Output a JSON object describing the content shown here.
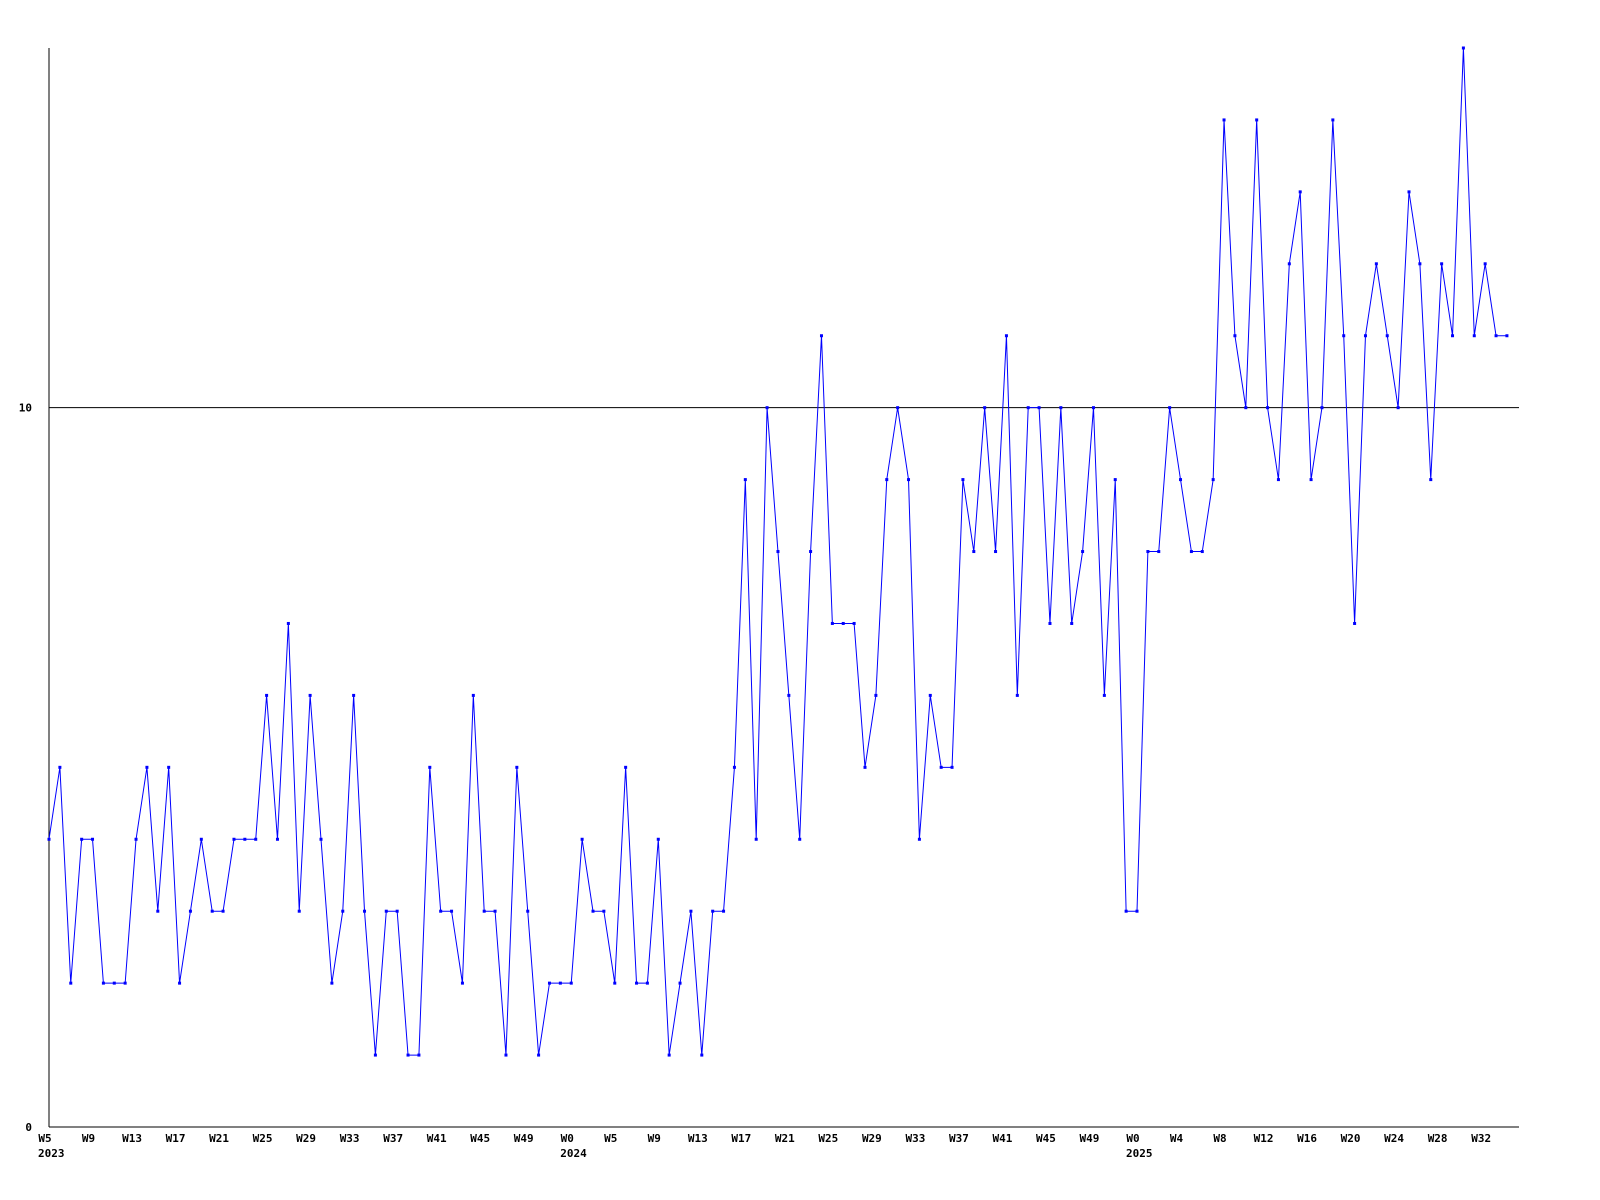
{
  "chart_data": {
    "type": "line",
    "categories": [
      "W5",
      null,
      null,
      null,
      "W9",
      null,
      null,
      null,
      "W13",
      null,
      null,
      null,
      "W17",
      null,
      null,
      null,
      "W21",
      null,
      null,
      null,
      "W25",
      null,
      null,
      null,
      "W29",
      null,
      null,
      null,
      "W33",
      null,
      null,
      null,
      "W37",
      null,
      null,
      null,
      "W41",
      null,
      null,
      null,
      "W45",
      null,
      null,
      null,
      "W49",
      null,
      null,
      null,
      "W0",
      null,
      null,
      null,
      "W5",
      null,
      null,
      null,
      "W9",
      null,
      null,
      null,
      "W13",
      null,
      null,
      null,
      "W17",
      null,
      null,
      null,
      "W21",
      null,
      null,
      null,
      "W25",
      null,
      null,
      null,
      "W29",
      null,
      null,
      null,
      "W33",
      null,
      null,
      null,
      "W37",
      null,
      null,
      null,
      "W41",
      null,
      null,
      null,
      "W45",
      null,
      null,
      null,
      "W49",
      null,
      null,
      null,
      "W0",
      null,
      null,
      null,
      "W4",
      null,
      null,
      null,
      "W8",
      null,
      null,
      null,
      "W12",
      null,
      null,
      null,
      "W16",
      null,
      null,
      null,
      "W20",
      null,
      null,
      null,
      "W24",
      null,
      null,
      null,
      "W28",
      null,
      null,
      null,
      "W32",
      null,
      null
    ],
    "category_years": [
      "2023",
      null,
      null,
      null,
      null,
      null,
      null,
      null,
      null,
      null,
      null,
      null,
      null,
      null,
      null,
      null,
      null,
      null,
      null,
      null,
      null,
      null,
      null,
      null,
      null,
      null,
      null,
      null,
      null,
      null,
      null,
      null,
      null,
      null,
      null,
      null,
      null,
      null,
      null,
      null,
      null,
      null,
      null,
      null,
      null,
      null,
      null,
      null,
      "2024",
      null,
      null,
      null,
      null,
      null,
      null,
      null,
      null,
      null,
      null,
      null,
      null,
      null,
      null,
      null,
      null,
      null,
      null,
      null,
      null,
      null,
      null,
      null,
      null,
      null,
      null,
      null,
      null,
      null,
      null,
      null,
      null,
      null,
      null,
      null,
      null,
      null,
      null,
      null,
      null,
      null,
      null,
      null,
      null,
      null,
      null,
      null,
      null,
      null,
      null,
      null,
      "2025",
      null,
      null,
      null,
      null,
      null,
      null,
      null,
      null,
      null,
      null,
      null,
      null,
      null,
      null,
      null,
      null,
      null,
      null,
      null,
      null,
      null,
      null,
      null,
      null,
      null,
      null,
      null,
      null,
      null,
      null,
      null,
      null,
      null,
      null
    ],
    "values": [
      4,
      5,
      2,
      4,
      4,
      2,
      2,
      2,
      4,
      5,
      3,
      5,
      2,
      3,
      4,
      3,
      3,
      4,
      4,
      4,
      6,
      4,
      7,
      3,
      6,
      4,
      2,
      3,
      6,
      3,
      1,
      3,
      3,
      1,
      1,
      5,
      3,
      3,
      2,
      6,
      3,
      3,
      1,
      5,
      3,
      1,
      2,
      2,
      2,
      4,
      3,
      3,
      2,
      5,
      2,
      2,
      4,
      1,
      2,
      3,
      1,
      3,
      3,
      5,
      9,
      4,
      10,
      8,
      6,
      4,
      8,
      11,
      7,
      7,
      7,
      5,
      6,
      9,
      10,
      9,
      4,
      6,
      5,
      5,
      9,
      8,
      10,
      8,
      11,
      6,
      10,
      10,
      7,
      10,
      7,
      8,
      10,
      6,
      9,
      3,
      3,
      8,
      8,
      10,
      9,
      8,
      8,
      9,
      14,
      11,
      10,
      14,
      10,
      9,
      12,
      13,
      9,
      10,
      14,
      11,
      7,
      11,
      12,
      11,
      10,
      13,
      12,
      9,
      12,
      11,
      15,
      11,
      12,
      11,
      11
    ],
    "color": "#0000ff",
    "ylim": [
      0,
      15
    ],
    "yticks": [
      0,
      10
    ],
    "grid": true
  }
}
